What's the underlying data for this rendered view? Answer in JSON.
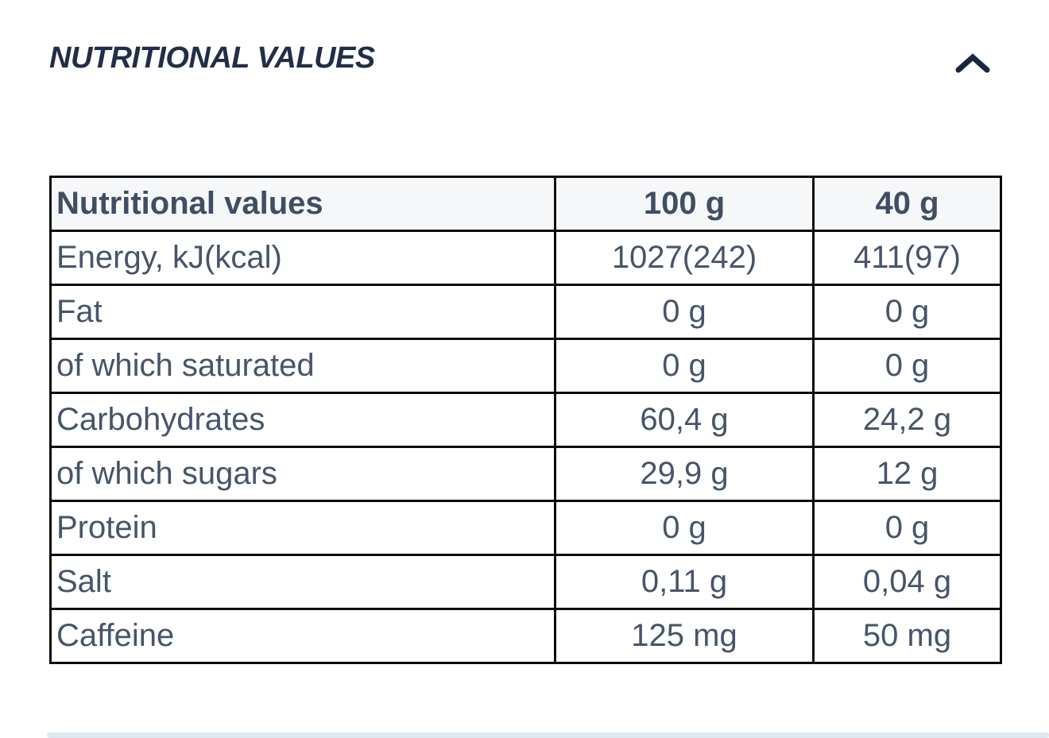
{
  "section": {
    "title": "NUTRITIONAL VALUES",
    "collapse_icon": "chevron-up-icon",
    "title_color": "#222e48"
  },
  "table": {
    "headers": [
      "Nutritional values",
      "100 g",
      "40 g"
    ],
    "rows": [
      {
        "label": "Energy, kJ(kcal)",
        "per_100g": "1027(242)",
        "per_40g": "411(97)"
      },
      {
        "label": "Fat",
        "per_100g": "0 g",
        "per_40g": "0 g"
      },
      {
        "label": "of which saturated",
        "per_100g": "0 g",
        "per_40g": "0 g"
      },
      {
        "label": "Carbohydrates",
        "per_100g": "60,4 g",
        "per_40g": "24,2 g"
      },
      {
        "label": "of which sugars",
        "per_100g": "29,9 g",
        "per_40g": "12 g"
      },
      {
        "label": "Protein",
        "per_100g": "0 g",
        "per_40g": "0 g"
      },
      {
        "label": "Salt",
        "per_100g": "0,11 g",
        "per_40g": "0,04 g"
      },
      {
        "label": "Caffeine",
        "per_100g": "125 mg",
        "per_40g": "50 mg"
      }
    ],
    "border_color": "#0b0b0b",
    "header_bg": "#f6f7f9",
    "text_color": "#47546a"
  },
  "divider_color": "#dfe7ee"
}
